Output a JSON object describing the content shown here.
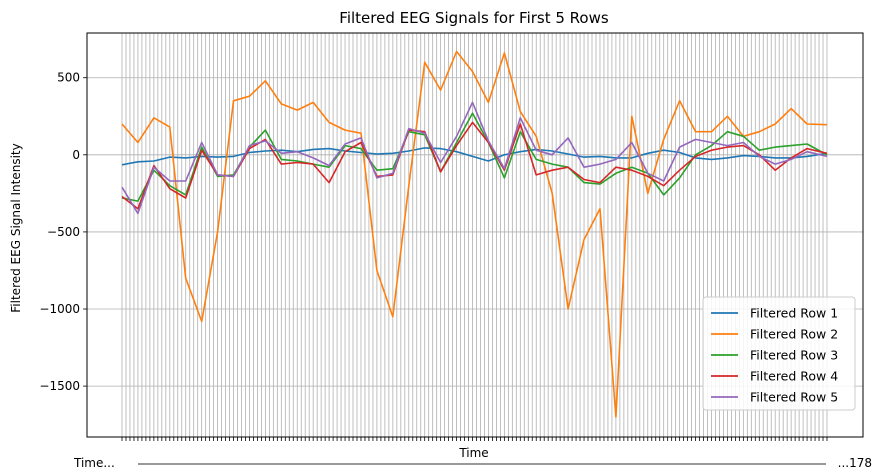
{
  "chart_data": {
    "type": "line",
    "title": "Filtered EEG Signals for First 5 Rows",
    "xlabel": "Time",
    "ylabel": "Filtered EEG Signal Intensity",
    "ylim": [
      -1830,
      790
    ],
    "yticks": [
      500,
      0,
      -500,
      -1000,
      -1500
    ],
    "ytick_labels": [
      "500",
      "0",
      "−500",
      "−1000",
      "−1500"
    ],
    "x_tick_count": 178,
    "x_tick_text_visible": [
      "Time...",
      "...178"
    ],
    "grid": true,
    "legend_position": "lower-right",
    "x": [
      0,
      4,
      8,
      12,
      16,
      20,
      24,
      28,
      32,
      36,
      40,
      44,
      48,
      52,
      56,
      60,
      64,
      68,
      72,
      76,
      80,
      84,
      88,
      92,
      96,
      100,
      104,
      108,
      112,
      116,
      120,
      124,
      128,
      132,
      136,
      140,
      144,
      148,
      152,
      156,
      160,
      164,
      168,
      172,
      177
    ],
    "series": [
      {
        "name": "Filtered Row 1",
        "color": "#1f77b4",
        "values": [
          -65,
          -45,
          -40,
          -15,
          -20,
          -10,
          -15,
          -10,
          15,
          25,
          30,
          20,
          35,
          40,
          25,
          15,
          5,
          10,
          25,
          45,
          40,
          20,
          -10,
          -40,
          0,
          20,
          35,
          25,
          5,
          -15,
          -10,
          -20,
          -20,
          10,
          30,
          15,
          -20,
          -30,
          -20,
          -5,
          -10,
          -20,
          -20,
          -10,
          10
        ]
      },
      {
        "name": "Filtered Row 2",
        "color": "#ff7f0e",
        "values": [
          200,
          80,
          240,
          180,
          -800,
          -1080,
          -500,
          350,
          380,
          480,
          330,
          290,
          340,
          210,
          160,
          140,
          -750,
          -1050,
          -200,
          600,
          420,
          670,
          540,
          340,
          660,
          280,
          120,
          -250,
          -1000,
          -550,
          -350,
          -1700,
          250,
          -250,
          100,
          350,
          150,
          150,
          250,
          120,
          150,
          200,
          300,
          200,
          195
        ]
      },
      {
        "name": "Filtered Row 3",
        "color": "#2ca02c",
        "values": [
          -280,
          -300,
          -100,
          -200,
          -260,
          50,
          -140,
          -130,
          50,
          160,
          -30,
          -40,
          -60,
          -80,
          60,
          40,
          -100,
          -90,
          150,
          130,
          -110,
          80,
          270,
          80,
          -150,
          150,
          -30,
          -60,
          -80,
          -180,
          -190,
          -120,
          -80,
          -120,
          -260,
          -150,
          0,
          60,
          150,
          120,
          30,
          50,
          60,
          70,
          0
        ]
      },
      {
        "name": "Filtered Row 4",
        "color": "#d62728",
        "values": [
          -270,
          -350,
          -70,
          -220,
          -280,
          30,
          -130,
          -140,
          40,
          100,
          -60,
          -50,
          -60,
          -180,
          20,
          80,
          -140,
          -130,
          160,
          150,
          -110,
          60,
          210,
          80,
          -100,
          200,
          -130,
          -100,
          -80,
          -160,
          -180,
          -80,
          -100,
          -140,
          -200,
          -100,
          -10,
          30,
          50,
          60,
          0,
          -100,
          -20,
          40,
          10
        ]
      },
      {
        "name": "Filtered Row 5",
        "color": "#9467bd",
        "values": [
          -210,
          -380,
          -80,
          -170,
          -170,
          80,
          -130,
          -140,
          60,
          90,
          10,
          20,
          -20,
          -70,
          70,
          110,
          -150,
          -120,
          170,
          140,
          -50,
          120,
          340,
          90,
          -90,
          240,
          30,
          0,
          110,
          -80,
          -60,
          -30,
          80,
          -120,
          -170,
          50,
          100,
          80,
          60,
          80,
          -10,
          -60,
          -30,
          20,
          -10
        ]
      }
    ]
  }
}
